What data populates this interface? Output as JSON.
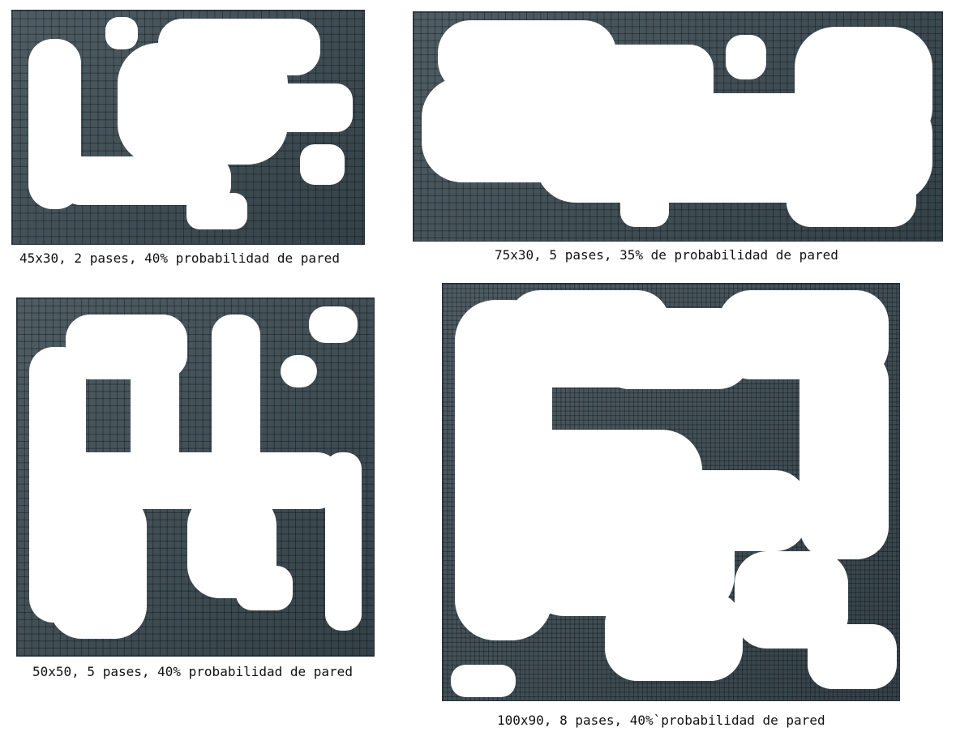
{
  "maps": [
    {
      "caption": "45x30, 2 pases, 40% probabilidad de pared",
      "grid_w": 45,
      "grid_h": 30,
      "passes": 2,
      "wall_probability": 0.4
    },
    {
      "caption": "75x30, 5 pases, 35% de probabilidad de pared",
      "grid_w": 75,
      "grid_h": 30,
      "passes": 5,
      "wall_probability": 0.35
    },
    {
      "caption": "50x50, 5 pases, 40% probabilidad de pared",
      "grid_w": 50,
      "grid_h": 50,
      "passes": 5,
      "wall_probability": 0.4
    },
    {
      "caption": "100x90, 8 pases, 40%`probabilidad de pared",
      "grid_w": 100,
      "grid_h": 90,
      "passes": 8,
      "wall_probability": 0.4
    }
  ],
  "colors": {
    "wall": "#3b4a52",
    "floor": "#ffffff",
    "grid_line": "#263238"
  }
}
